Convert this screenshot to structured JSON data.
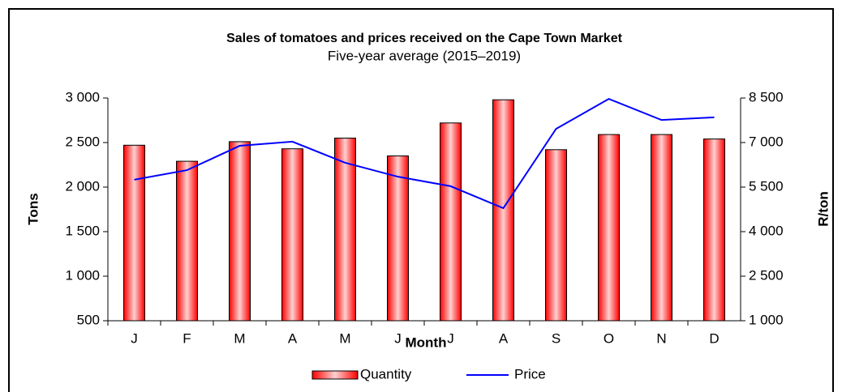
{
  "chart_data": {
    "type": "bar_line",
    "title": "Sales of tomatoes and prices received on the Cape Town Market",
    "subtitle": "Five-year average (2015–2019)",
    "x_label": "Month",
    "y_label": "Tons",
    "y2_label": "R/ton",
    "categories": [
      "J",
      "F",
      "M",
      "A",
      "M",
      "J",
      "J",
      "A",
      "S",
      "O",
      "N",
      "D"
    ],
    "series": [
      {
        "name": "Quantity",
        "color": "#ff0000",
        "type": "bar",
        "values": [
          2470,
          2290,
          2510,
          2430,
          2550,
          2350,
          2720,
          2980,
          2420,
          2590,
          2590,
          2540
        ]
      },
      {
        "name": "Price",
        "color": "#0000ff",
        "type": "line",
        "axis": "y2",
        "values": [
          5750,
          6070,
          6890,
          7030,
          6320,
          5850,
          5530,
          4790,
          7460,
          8470,
          7760,
          7850
        ]
      }
    ],
    "ylim": [
      500,
      3000
    ],
    "yticks": [
      500,
      {
        "value": 1000,
        "label": "1 000"
      },
      {
        "value": 1500,
        "label": "1 500"
      },
      {
        "value": 2000,
        "label": "2 000"
      },
      {
        "value": 2500,
        "label": "2 500"
      },
      {
        "value": 3000,
        "label": "3 000"
      }
    ],
    "y2lim": [
      1000,
      8500
    ],
    "y2ticks": [
      {
        "value": 1000,
        "label": "1 000"
      },
      {
        "value": 2500,
        "label": "2 500"
      },
      {
        "value": 4000,
        "label": "4 000"
      },
      {
        "value": 5500,
        "label": "5 500"
      },
      {
        "value": 7000,
        "label": "7 000"
      },
      {
        "value": 8500,
        "label": "8 500"
      }
    ],
    "grid": false,
    "legend": "bottom"
  }
}
